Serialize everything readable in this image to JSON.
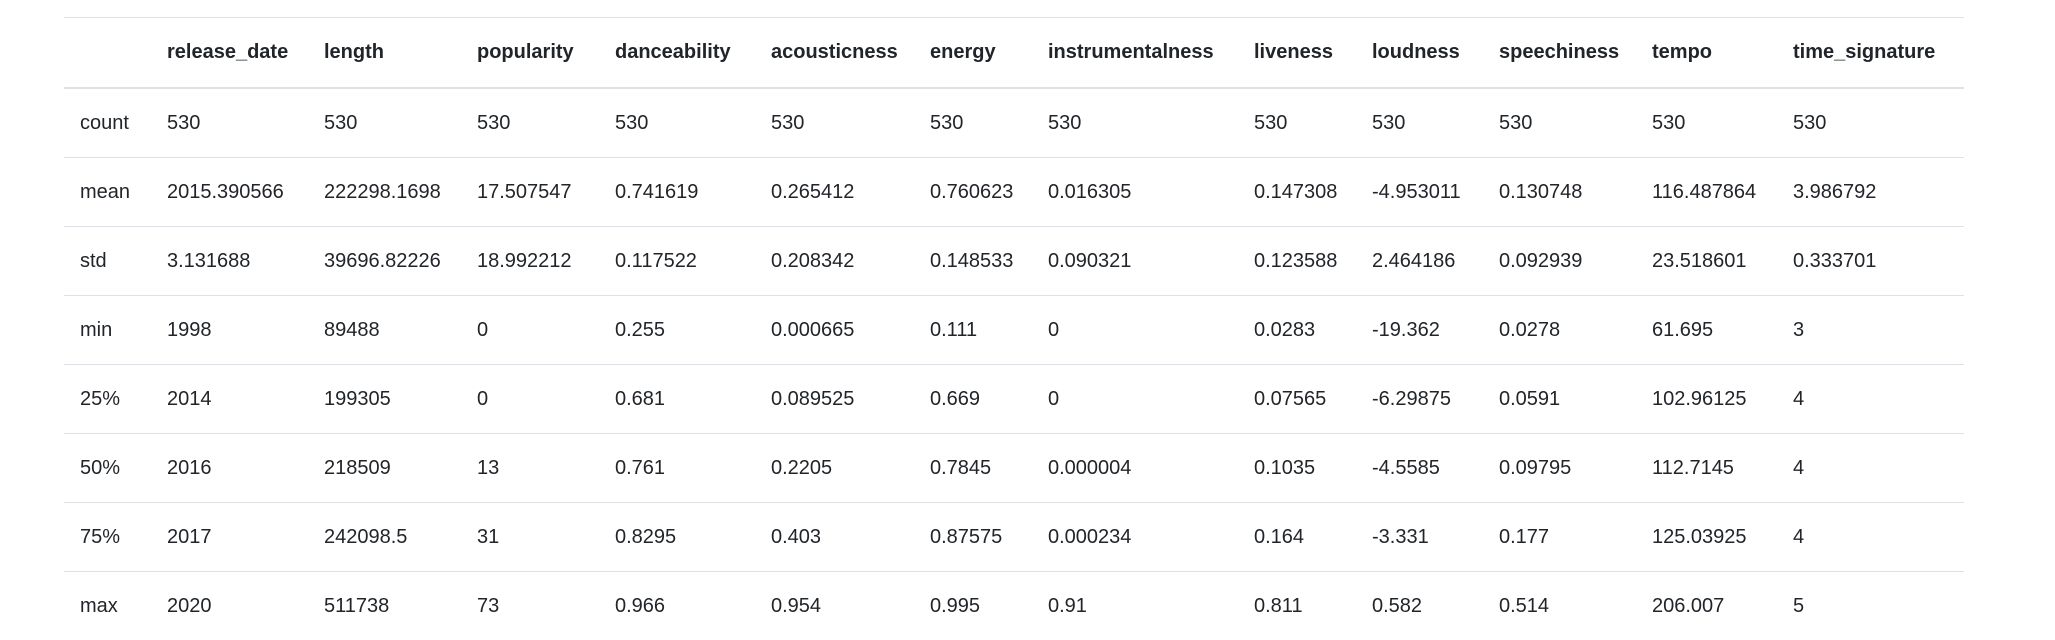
{
  "table": {
    "columns": [
      "",
      "release_date",
      "length",
      "popularity",
      "danceability",
      "acousticness",
      "energy",
      "instrumentalness",
      "liveness",
      "loudness",
      "speechiness",
      "tempo",
      "time_signature"
    ],
    "rows": [
      {
        "label": "count",
        "values": [
          "530",
          "530",
          "530",
          "530",
          "530",
          "530",
          "530",
          "530",
          "530",
          "530",
          "530",
          "530"
        ]
      },
      {
        "label": "mean",
        "values": [
          "2015.390566",
          "222298.1698",
          "17.507547",
          "0.741619",
          "0.265412",
          "0.760623",
          "0.016305",
          "0.147308",
          "-4.953011",
          "0.130748",
          "116.487864",
          "3.986792"
        ]
      },
      {
        "label": "std",
        "values": [
          "3.131688",
          "39696.82226",
          "18.992212",
          "0.117522",
          "0.208342",
          "0.148533",
          "0.090321",
          "0.123588",
          "2.464186",
          "0.092939",
          "23.518601",
          "0.333701"
        ]
      },
      {
        "label": "min",
        "values": [
          "1998",
          "89488",
          "0",
          "0.255",
          "0.000665",
          "0.111",
          "0",
          "0.0283",
          "-19.362",
          "0.0278",
          "61.695",
          "3"
        ]
      },
      {
        "label": "25%",
        "values": [
          "2014",
          "199305",
          "0",
          "0.681",
          "0.089525",
          "0.669",
          "0",
          "0.07565",
          "-6.29875",
          "0.0591",
          "102.96125",
          "4"
        ]
      },
      {
        "label": "50%",
        "values": [
          "2016",
          "218509",
          "13",
          "0.761",
          "0.2205",
          "0.7845",
          "0.000004",
          "0.1035",
          "-4.5585",
          "0.09795",
          "112.7145",
          "4"
        ]
      },
      {
        "label": "75%",
        "values": [
          "2017",
          "242098.5",
          "31",
          "0.8295",
          "0.403",
          "0.87575",
          "0.000234",
          "0.164",
          "-3.331",
          "0.177",
          "125.03925",
          "4"
        ]
      },
      {
        "label": "max",
        "values": [
          "2020",
          "511738",
          "73",
          "0.966",
          "0.954",
          "0.995",
          "0.91",
          "0.811",
          "0.582",
          "0.514",
          "206.007",
          "5"
        ]
      }
    ]
  }
}
